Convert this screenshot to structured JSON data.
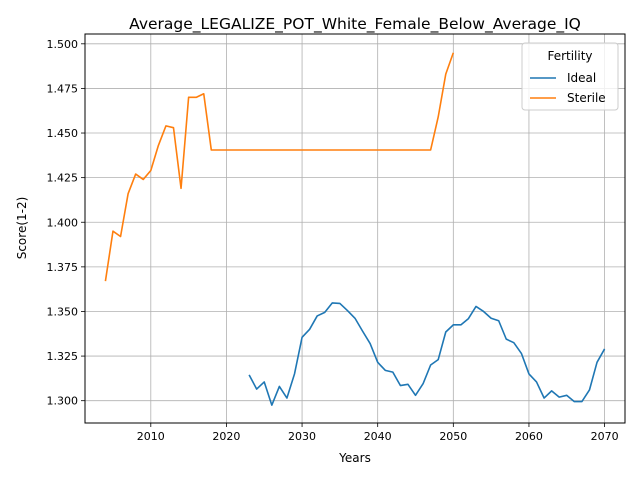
{
  "chart_data": {
    "type": "line",
    "title": "Average_LEGALIZE_POT_White_Female_Below_Average_IQ",
    "xlabel": "Years",
    "ylabel": "Score(1-2)",
    "xlim": [
      2001.3,
      2072.7
    ],
    "ylim": [
      1.2875,
      1.5055
    ],
    "x_ticks": [
      2010,
      2020,
      2030,
      2040,
      2050,
      2060,
      2070
    ],
    "x_tick_labels": [
      "2010",
      "2020",
      "2030",
      "2040",
      "2050",
      "2060",
      "2070"
    ],
    "y_ticks": [
      1.3,
      1.325,
      1.35,
      1.375,
      1.4,
      1.425,
      1.45,
      1.475,
      1.5
    ],
    "y_tick_labels": [
      "1.300",
      "1.325",
      "1.350",
      "1.375",
      "1.400",
      "1.425",
      "1.450",
      "1.475",
      "1.500"
    ],
    "grid": true,
    "legend": {
      "title": "Fertility",
      "placement": "top-right"
    },
    "series": [
      {
        "name": "Ideal",
        "color": "#1f77b4",
        "x": [
          2023,
          2024,
          2025,
          2026,
          2027,
          2028,
          2029,
          2030,
          2031,
          2032,
          2033,
          2034,
          2035,
          2036,
          2037,
          2038,
          2039,
          2040,
          2041,
          2042,
          2043,
          2044,
          2045,
          2046,
          2047,
          2048,
          2049,
          2050,
          2051,
          2052,
          2053,
          2054,
          2055,
          2056,
          2057,
          2058,
          2059,
          2060,
          2061,
          2062,
          2063,
          2064,
          2065,
          2066,
          2067,
          2068,
          2069,
          2070
        ],
        "y": [
          1.3145,
          1.3065,
          1.3105,
          1.2975,
          1.308,
          1.3015,
          1.315,
          1.3355,
          1.34,
          1.3475,
          1.3495,
          1.3548,
          1.3545,
          1.3505,
          1.3462,
          1.339,
          1.332,
          1.3215,
          1.317,
          1.316,
          1.3085,
          1.3092,
          1.303,
          1.3095,
          1.32,
          1.323,
          1.3385,
          1.3425,
          1.3425,
          1.346,
          1.3528,
          1.35,
          1.3462,
          1.3448,
          1.3345,
          1.3325,
          1.3265,
          1.315,
          1.3105,
          1.3015,
          1.3055,
          1.302,
          1.303,
          1.2995,
          1.2995,
          1.306,
          1.3215,
          1.329
        ]
      },
      {
        "name": "Sterile",
        "color": "#ff7f0e",
        "x": [
          2004,
          2005,
          2006,
          2007,
          2008,
          2009,
          2010,
          2011,
          2012,
          2013,
          2014,
          2015,
          2016,
          2017,
          2018,
          2019,
          2020,
          2025,
          2030,
          2035,
          2040,
          2045,
          2046,
          2047,
          2048,
          2049,
          2050
        ],
        "y": [
          1.367,
          1.395,
          1.392,
          1.416,
          1.427,
          1.424,
          1.429,
          1.443,
          1.454,
          1.453,
          1.419,
          1.47,
          1.47,
          1.472,
          1.4405,
          1.4405,
          1.4405,
          1.4405,
          1.4405,
          1.4405,
          1.4405,
          1.4405,
          1.4405,
          1.4405,
          1.459,
          1.483,
          1.495
        ]
      }
    ]
  }
}
